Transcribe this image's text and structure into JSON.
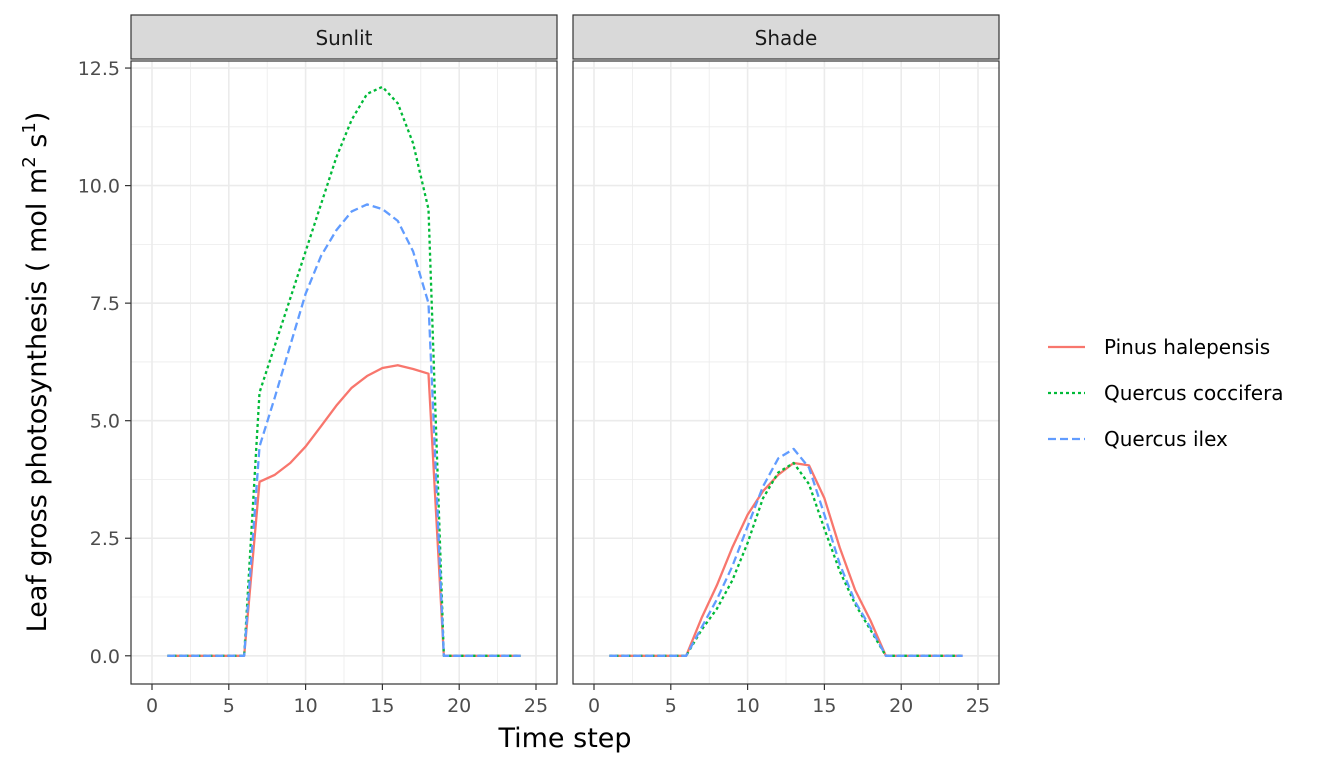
{
  "chart_data": {
    "type": "line",
    "facets": [
      {
        "label": "Sunlit",
        "series": [
          {
            "name": "Pinus halepensis",
            "color": "#F8766D",
            "dash": "solid",
            "x": [
              1,
              2,
              3,
              4,
              5,
              6,
              7,
              8,
              9,
              10,
              11,
              12,
              13,
              14,
              15,
              16,
              17,
              18,
              19,
              20,
              21,
              22,
              23,
              24
            ],
            "values": [
              0,
              0,
              0,
              0,
              0,
              0,
              3.7,
              3.85,
              4.1,
              4.45,
              4.88,
              5.32,
              5.7,
              5.95,
              6.12,
              6.18,
              6.1,
              6.0,
              0,
              0,
              0,
              0,
              0,
              0
            ]
          },
          {
            "name": "Quercus coccifera",
            "color": "#00BA38",
            "dash": "dotted",
            "x": [
              1,
              2,
              3,
              4,
              5,
              6,
              7,
              8,
              9,
              10,
              11,
              12,
              13,
              14,
              15,
              16,
              17,
              18,
              19,
              20,
              21,
              22,
              23,
              24
            ],
            "values": [
              0,
              0,
              0,
              0,
              0,
              0,
              5.6,
              6.6,
              7.6,
              8.6,
              9.6,
              10.6,
              11.4,
              11.95,
              12.1,
              11.75,
              10.9,
              9.5,
              0,
              0,
              0,
              0,
              0,
              0
            ]
          },
          {
            "name": "Quercus ilex",
            "color": "#619CFF",
            "dash": "dashed",
            "x": [
              1,
              2,
              3,
              4,
              5,
              6,
              7,
              8,
              9,
              10,
              11,
              12,
              13,
              14,
              15,
              16,
              17,
              18,
              19,
              20,
              21,
              22,
              23,
              24
            ],
            "values": [
              0,
              0,
              0,
              0,
              0,
              0,
              4.45,
              5.5,
              6.6,
              7.7,
              8.5,
              9.05,
              9.45,
              9.6,
              9.5,
              9.25,
              8.6,
              7.5,
              0,
              0,
              0,
              0,
              0,
              0
            ]
          }
        ]
      },
      {
        "label": "Shade",
        "series": [
          {
            "name": "Pinus halepensis",
            "color": "#F8766D",
            "dash": "solid",
            "x": [
              1,
              2,
              3,
              4,
              5,
              6,
              7,
              8,
              9,
              10,
              11,
              12,
              13,
              14,
              15,
              16,
              17,
              18,
              19,
              20,
              21,
              22,
              23,
              24
            ],
            "values": [
              0,
              0,
              0,
              0,
              0,
              0,
              0.8,
              1.5,
              2.3,
              3.0,
              3.5,
              3.85,
              4.1,
              4.05,
              3.35,
              2.3,
              1.4,
              0.75,
              0,
              0,
              0,
              0,
              0,
              0
            ]
          },
          {
            "name": "Quercus coccifera",
            "color": "#00BA38",
            "dash": "dotted",
            "x": [
              1,
              2,
              3,
              4,
              5,
              6,
              7,
              8,
              9,
              10,
              11,
              12,
              13,
              14,
              15,
              16,
              17,
              18,
              19,
              20,
              21,
              22,
              23,
              24
            ],
            "values": [
              0,
              0,
              0,
              0,
              0,
              0,
              0.55,
              1.0,
              1.6,
              2.4,
              3.35,
              3.9,
              4.1,
              3.65,
              2.7,
              1.8,
              1.1,
              0.55,
              0,
              0,
              0,
              0,
              0,
              0
            ]
          },
          {
            "name": "Quercus ilex",
            "color": "#619CFF",
            "dash": "dashed",
            "x": [
              1,
              2,
              3,
              4,
              5,
              6,
              7,
              8,
              9,
              10,
              11,
              12,
              13,
              14,
              15,
              16,
              17,
              18,
              19,
              20,
              21,
              22,
              23,
              24
            ],
            "values": [
              0,
              0,
              0,
              0,
              0,
              0,
              0.6,
              1.2,
              1.9,
              2.75,
              3.6,
              4.2,
              4.4,
              4.0,
              3.0,
              1.95,
              1.15,
              0.6,
              0,
              0,
              0,
              0,
              0,
              0
            ]
          }
        ]
      }
    ],
    "xlabel": "Time step",
    "ylabel": "Leaf gross photosynthesis (   mol  m",
    "ylabel_sup1": "2",
    "ylabel_mid": "  s",
    "ylabel_sup2": "1",
    "ylabel_end": ")",
    "xlim": [
      0,
      25
    ],
    "ylim": [
      -0.6,
      12.65
    ],
    "x_ticks": [
      0,
      5,
      10,
      15,
      20,
      25
    ],
    "x_tick_labels": [
      "0",
      "5",
      "10",
      "15",
      "20",
      "25"
    ],
    "y_ticks": [
      0,
      2.5,
      5,
      7.5,
      10,
      12.5
    ],
    "y_tick_labels": [
      "0.0",
      "2.5",
      "5.0",
      "7.5",
      "10.0",
      "12.5"
    ],
    "grid": true,
    "legend_position": "right",
    "legend": [
      "Pinus halepensis",
      "Quercus coccifera",
      "Quercus ilex"
    ]
  }
}
